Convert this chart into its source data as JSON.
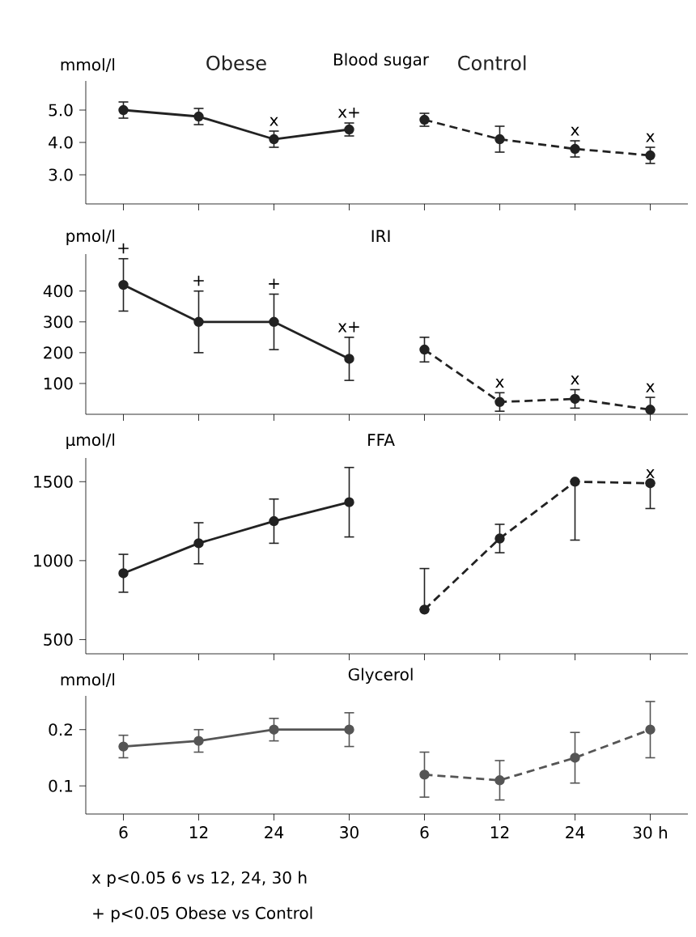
{
  "chart_data": [
    {
      "type": "line",
      "title": "Blood sugar",
      "ylabel": "mmol/l",
      "marker": "circle",
      "tick_labels": "y",
      "categories": [
        null,
        null,
        null,
        null,
        null,
        null,
        null,
        null
      ],
      "ylim": [
        2.1,
        5.9
      ],
      "yticks": [
        {
          "value": 3,
          "label": "3.0"
        },
        {
          "value": 4,
          "label": "4.0"
        },
        {
          "value": 5,
          "label": "5.0"
        }
      ],
      "series": [
        {
          "name": "Obese",
          "color": "#222222",
          "line_style": "solid",
          "values": [
            5.0,
            4.8,
            4.1,
            4.4,
            null,
            null,
            null,
            null
          ],
          "errors": [
            0.25,
            0.25,
            0.25,
            0.2,
            null,
            null,
            null,
            null
          ],
          "value_labels": [
            null,
            null,
            "x",
            "x+",
            null,
            null,
            null,
            null
          ]
        },
        {
          "name": "Control",
          "color": "#222222",
          "line_style": "dashed",
          "values": [
            null,
            null,
            null,
            null,
            4.7,
            4.1,
            3.8,
            3.6
          ],
          "errors": [
            null,
            null,
            null,
            null,
            0.2,
            0.4,
            0.25,
            0.25
          ],
          "value_labels": [
            null,
            null,
            null,
            null,
            null,
            null,
            "x",
            "x"
          ]
        }
      ]
    },
    {
      "type": "line",
      "title": "IRI",
      "ylabel": "pmol/l",
      "marker": "circle",
      "tick_labels": "y",
      "categories": [
        null,
        null,
        null,
        null,
        null,
        null,
        null,
        null
      ],
      "ylim": [
        0,
        520
      ],
      "yticks": [
        100,
        200,
        300,
        400
      ],
      "series": [
        {
          "color": "#222222",
          "line_style": "solid",
          "values": [
            420,
            300,
            300,
            180,
            null,
            null,
            null,
            null
          ],
          "errors": [
            85,
            100,
            90,
            70,
            null,
            null,
            null,
            null
          ],
          "value_labels": [
            "+",
            "+",
            "+",
            "x+",
            null,
            null,
            null,
            null
          ]
        },
        {
          "color": "#222222",
          "line_style": "dashed",
          "values": [
            null,
            null,
            null,
            null,
            210,
            40,
            50,
            15
          ],
          "errors": [
            null,
            null,
            null,
            null,
            40,
            30,
            30,
            [
              15,
              55
            ]
          ],
          "value_labels": [
            null,
            null,
            null,
            null,
            null,
            "x",
            "x",
            "x"
          ]
        }
      ]
    },
    {
      "type": "line",
      "title": "FFA",
      "ylabel": "µmol/l",
      "marker": "circle",
      "tick_labels": "y",
      "categories": [
        null,
        null,
        null,
        null,
        null,
        null,
        null,
        null
      ],
      "ylim": [
        410,
        1650
      ],
      "yticks": [
        500,
        1000,
        1500
      ],
      "series": [
        {
          "color": "#222222",
          "line_style": "solid",
          "values": [
            920,
            1110,
            1250,
            1370,
            null,
            null,
            null,
            null
          ],
          "errors": [
            120,
            130,
            140,
            220,
            null,
            null,
            null,
            null
          ]
        },
        {
          "color": "#222222",
          "line_style": "dashed",
          "values": [
            null,
            null,
            null,
            null,
            690,
            1140,
            1500,
            1490
          ],
          "errors": [
            null,
            null,
            null,
            null,
            [
              690,
              950
            ],
            90,
            [
              1130,
              1500
            ],
            [
              1330,
              1490
            ]
          ],
          "value_labels": [
            null,
            null,
            null,
            null,
            null,
            null,
            null,
            "x"
          ]
        }
      ]
    },
    {
      "type": "line",
      "title": "Glycerol",
      "ylabel": "mmol/l",
      "marker": "circle",
      "categories": [
        "6",
        "12",
        "24",
        "30",
        "6",
        "12",
        "24",
        "30 h"
      ],
      "ylim": [
        0.05,
        0.26
      ],
      "yticks": [
        0.1,
        0.2
      ],
      "series": [
        {
          "color": "#555555",
          "line_style": "solid",
          "values": [
            0.17,
            0.18,
            0.2,
            0.2,
            null,
            null,
            null,
            null
          ],
          "errors": [
            0.02,
            0.02,
            0.02,
            0.03,
            null,
            null,
            null,
            null
          ]
        },
        {
          "color": "#555555",
          "line_style": "dashed",
          "values": [
            null,
            null,
            null,
            null,
            0.12,
            0.11,
            0.15,
            0.2
          ],
          "errors": [
            null,
            null,
            null,
            null,
            0.04,
            0.035,
            0.045,
            0.05
          ]
        }
      ],
      "annotations": [
        "x p<0.05 6 vs 12, 24, 30 h",
        "+ p<0.05 Obese vs Control"
      ]
    }
  ]
}
